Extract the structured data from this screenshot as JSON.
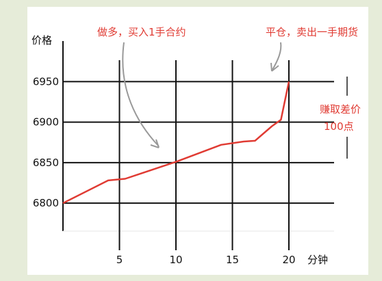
{
  "chart_data": {
    "type": "line",
    "title": "",
    "ylabel": "价格",
    "xlabel": "分钟",
    "x_ticks": [
      5,
      10,
      15,
      20
    ],
    "y_ticks": [
      6800,
      6850,
      6900,
      6950
    ],
    "xlim": [
      0,
      24
    ],
    "ylim": [
      6757,
      6990
    ],
    "grid": true,
    "colors": {
      "line": "#e03b33",
      "grid": "#111111",
      "annotation": "#e03b33",
      "arrow": "#999999"
    },
    "series": [
      {
        "x": [
          0,
          4,
          5.5,
          10,
          14,
          16,
          17,
          18.5,
          19.3,
          20
        ],
        "y": [
          6800,
          6828,
          6830,
          6851,
          6872,
          6876,
          6877,
          6895,
          6903,
          6950
        ]
      }
    ],
    "annotations": [
      {
        "text": "做多，买入1手合约"
      },
      {
        "text": "平仓，卖出一手期货"
      },
      {
        "text": "赚取差价"
      },
      {
        "text": "100点"
      }
    ]
  }
}
